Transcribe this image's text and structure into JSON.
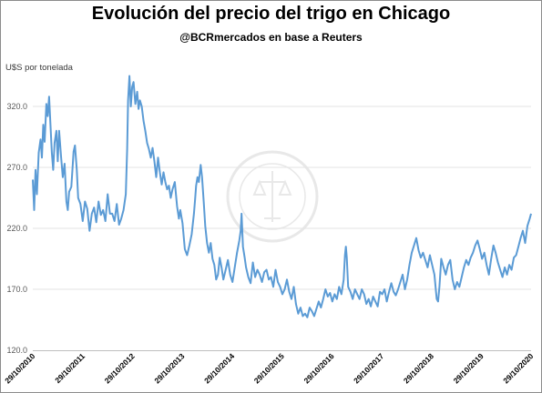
{
  "chart_data": {
    "type": "line",
    "title": "Evolución del precio del trigo en Chicago",
    "subtitle": "@BCRmercados  en base a Reuters",
    "xlabel": "",
    "ylabel": "U$S por tonelada",
    "ylim": [
      120,
      345
    ],
    "y_ticks": [
      "120.0",
      "170.0",
      "220.0",
      "270.0",
      "320.0"
    ],
    "x_ticks": [
      "29/10/2010",
      "29/10/2011",
      "29/10/2012",
      "29/10/2013",
      "29/10/2014",
      "29/10/2015",
      "29/10/2016",
      "29/10/2017",
      "29/10/2018",
      "29/10/2019",
      "29/10/2020"
    ],
    "grid": "horizontal",
    "series": [
      {
        "color": "#5b9bd5",
        "points": [
          [
            2010.0,
            260
          ],
          [
            2010.03,
            235
          ],
          [
            2010.06,
            268
          ],
          [
            2010.09,
            248
          ],
          [
            2010.13,
            282
          ],
          [
            2010.17,
            293
          ],
          [
            2010.2,
            278
          ],
          [
            2010.23,
            305
          ],
          [
            2010.26,
            291
          ],
          [
            2010.3,
            322
          ],
          [
            2010.33,
            312
          ],
          [
            2010.36,
            328
          ],
          [
            2010.39,
            305
          ],
          [
            2010.42,
            282
          ],
          [
            2010.45,
            268
          ],
          [
            2010.48,
            290
          ],
          [
            2010.52,
            300
          ],
          [
            2010.55,
            275
          ],
          [
            2010.58,
            300
          ],
          [
            2010.62,
            280
          ],
          [
            2010.66,
            262
          ],
          [
            2010.7,
            273
          ],
          [
            2010.74,
            242
          ],
          [
            2010.77,
            235
          ],
          [
            2010.8,
            250
          ],
          [
            2010.85,
            254
          ],
          [
            2010.9,
            283
          ],
          [
            2010.93,
            288
          ],
          [
            2010.97,
            268
          ],
          [
            2011.0,
            245
          ],
          [
            2011.05,
            240
          ],
          [
            2011.1,
            226
          ],
          [
            2011.15,
            242
          ],
          [
            2011.2,
            236
          ],
          [
            2011.25,
            218
          ],
          [
            2011.3,
            232
          ],
          [
            2011.35,
            237
          ],
          [
            2011.4,
            225
          ],
          [
            2011.45,
            242
          ],
          [
            2011.5,
            231
          ],
          [
            2011.55,
            235
          ],
          [
            2011.6,
            226
          ],
          [
            2011.65,
            248
          ],
          [
            2011.7,
            232
          ],
          [
            2011.75,
            232
          ],
          [
            2011.8,
            226
          ],
          [
            2011.85,
            240
          ],
          [
            2011.9,
            223
          ],
          [
            2011.95,
            228
          ],
          [
            2012.0,
            235
          ],
          [
            2012.05,
            248
          ],
          [
            2012.08,
            285
          ],
          [
            2012.1,
            325
          ],
          [
            2012.13,
            345
          ],
          [
            2012.16,
            320
          ],
          [
            2012.19,
            336
          ],
          [
            2012.22,
            340
          ],
          [
            2012.26,
            322
          ],
          [
            2012.3,
            332
          ],
          [
            2012.33,
            318
          ],
          [
            2012.36,
            325
          ],
          [
            2012.4,
            320
          ],
          [
            2012.44,
            308
          ],
          [
            2012.48,
            300
          ],
          [
            2012.52,
            290
          ],
          [
            2012.56,
            285
          ],
          [
            2012.6,
            278
          ],
          [
            2012.64,
            286
          ],
          [
            2012.68,
            275
          ],
          [
            2012.72,
            262
          ],
          [
            2012.76,
            278
          ],
          [
            2012.8,
            266
          ],
          [
            2012.84,
            256
          ],
          [
            2012.88,
            266
          ],
          [
            2012.92,
            258
          ],
          [
            2012.96,
            252
          ],
          [
            2013.0,
            255
          ],
          [
            2013.04,
            245
          ],
          [
            2013.08,
            252
          ],
          [
            2013.13,
            258
          ],
          [
            2013.18,
            238
          ],
          [
            2013.22,
            228
          ],
          [
            2013.25,
            235
          ],
          [
            2013.3,
            224
          ],
          [
            2013.35,
            203
          ],
          [
            2013.4,
            198
          ],
          [
            2013.45,
            206
          ],
          [
            2013.5,
            215
          ],
          [
            2013.55,
            232
          ],
          [
            2013.58,
            245
          ],
          [
            2013.6,
            255
          ],
          [
            2013.63,
            262
          ],
          [
            2013.66,
            258
          ],
          [
            2013.7,
            272
          ],
          [
            2013.73,
            262
          ],
          [
            2013.77,
            240
          ],
          [
            2013.8,
            222
          ],
          [
            2013.84,
            208
          ],
          [
            2013.88,
            200
          ],
          [
            2013.92,
            208
          ],
          [
            2013.96,
            195
          ],
          [
            2014.0,
            190
          ],
          [
            2014.04,
            178
          ],
          [
            2014.08,
            182
          ],
          [
            2014.12,
            196
          ],
          [
            2014.16,
            188
          ],
          [
            2014.2,
            178
          ],
          [
            2014.25,
            186
          ],
          [
            2014.3,
            194
          ],
          [
            2014.35,
            182
          ],
          [
            2014.4,
            176
          ],
          [
            2014.45,
            188
          ],
          [
            2014.5,
            200
          ],
          [
            2014.55,
            210
          ],
          [
            2014.58,
            218
          ],
          [
            2014.6,
            232
          ],
          [
            2014.63,
            205
          ],
          [
            2014.67,
            196
          ],
          [
            2014.7,
            188
          ],
          [
            2014.75,
            180
          ],
          [
            2014.8,
            175
          ],
          [
            2014.85,
            192
          ],
          [
            2014.9,
            180
          ],
          [
            2014.95,
            186
          ],
          [
            2015.0,
            182
          ],
          [
            2015.05,
            176
          ],
          [
            2015.1,
            184
          ],
          [
            2015.15,
            186
          ],
          [
            2015.2,
            178
          ],
          [
            2015.25,
            180
          ],
          [
            2015.3,
            172
          ],
          [
            2015.35,
            186
          ],
          [
            2015.4,
            176
          ],
          [
            2015.45,
            172
          ],
          [
            2015.5,
            166
          ],
          [
            2015.55,
            170
          ],
          [
            2015.6,
            178
          ],
          [
            2015.65,
            168
          ],
          [
            2015.7,
            162
          ],
          [
            2015.75,
            172
          ],
          [
            2015.8,
            158
          ],
          [
            2015.85,
            150
          ],
          [
            2015.9,
            155
          ],
          [
            2015.95,
            148
          ],
          [
            2016.0,
            150
          ],
          [
            2016.05,
            147
          ],
          [
            2016.1,
            155
          ],
          [
            2016.15,
            152
          ],
          [
            2016.2,
            148
          ],
          [
            2016.25,
            154
          ],
          [
            2016.3,
            160
          ],
          [
            2016.35,
            155
          ],
          [
            2016.4,
            162
          ],
          [
            2016.45,
            170
          ],
          [
            2016.5,
            164
          ],
          [
            2016.55,
            167
          ],
          [
            2016.6,
            160
          ],
          [
            2016.65,
            166
          ],
          [
            2016.7,
            162
          ],
          [
            2016.75,
            172
          ],
          [
            2016.8,
            166
          ],
          [
            2016.85,
            178
          ],
          [
            2016.88,
            198
          ],
          [
            2016.9,
            205
          ],
          [
            2016.92,
            196
          ],
          [
            2016.95,
            172
          ],
          [
            2017.0,
            168
          ],
          [
            2017.05,
            162
          ],
          [
            2017.1,
            170
          ],
          [
            2017.15,
            166
          ],
          [
            2017.2,
            162
          ],
          [
            2017.25,
            170
          ],
          [
            2017.3,
            166
          ],
          [
            2017.35,
            158
          ],
          [
            2017.4,
            162
          ],
          [
            2017.45,
            156
          ],
          [
            2017.5,
            164
          ],
          [
            2017.55,
            160
          ],
          [
            2017.6,
            156
          ],
          [
            2017.65,
            168
          ],
          [
            2017.7,
            166
          ],
          [
            2017.75,
            170
          ],
          [
            2017.8,
            160
          ],
          [
            2017.85,
            168
          ],
          [
            2017.9,
            175
          ],
          [
            2017.95,
            168
          ],
          [
            2018.0,
            165
          ],
          [
            2018.05,
            170
          ],
          [
            2018.1,
            176
          ],
          [
            2018.15,
            182
          ],
          [
            2018.2,
            170
          ],
          [
            2018.25,
            178
          ],
          [
            2018.3,
            190
          ],
          [
            2018.35,
            200
          ],
          [
            2018.4,
            206
          ],
          [
            2018.45,
            212
          ],
          [
            2018.5,
            202
          ],
          [
            2018.55,
            196
          ],
          [
            2018.6,
            200
          ],
          [
            2018.65,
            194
          ],
          [
            2018.7,
            188
          ],
          [
            2018.75,
            198
          ],
          [
            2018.8,
            190
          ],
          [
            2018.85,
            182
          ],
          [
            2018.88,
            170
          ],
          [
            2018.9,
            162
          ],
          [
            2018.93,
            160
          ],
          [
            2018.96,
            172
          ],
          [
            2019.0,
            195
          ],
          [
            2019.05,
            188
          ],
          [
            2019.1,
            182
          ],
          [
            2019.15,
            190
          ],
          [
            2019.2,
            194
          ],
          [
            2019.25,
            178
          ],
          [
            2019.3,
            170
          ],
          [
            2019.35,
            176
          ],
          [
            2019.4,
            172
          ],
          [
            2019.45,
            180
          ],
          [
            2019.5,
            188
          ],
          [
            2019.55,
            194
          ],
          [
            2019.6,
            190
          ],
          [
            2019.65,
            196
          ],
          [
            2019.7,
            200
          ],
          [
            2019.75,
            206
          ],
          [
            2019.8,
            210
          ],
          [
            2019.85,
            203
          ],
          [
            2019.9,
            195
          ],
          [
            2019.95,
            200
          ],
          [
            2020.0,
            190
          ],
          [
            2020.05,
            182
          ],
          [
            2020.1,
            195
          ],
          [
            2020.15,
            206
          ],
          [
            2020.2,
            200
          ],
          [
            2020.25,
            192
          ],
          [
            2020.3,
            186
          ],
          [
            2020.35,
            180
          ],
          [
            2020.4,
            188
          ],
          [
            2020.45,
            182
          ],
          [
            2020.5,
            190
          ],
          [
            2020.55,
            186
          ],
          [
            2020.6,
            196
          ],
          [
            2020.65,
            198
          ],
          [
            2020.7,
            205
          ],
          [
            2020.75,
            212
          ],
          [
            2020.8,
            218
          ],
          [
            2020.85,
            208
          ],
          [
            2020.9,
            222
          ],
          [
            2020.95,
            228
          ],
          [
            2020.98,
            232
          ]
        ]
      }
    ]
  }
}
